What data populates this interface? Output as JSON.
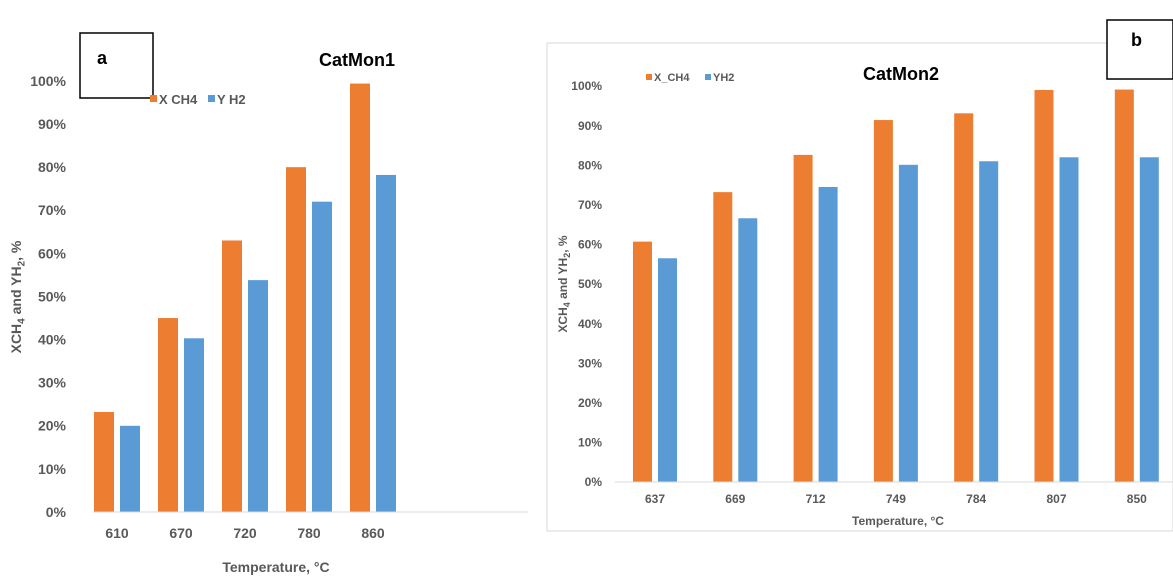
{
  "colors": {
    "x_ch4": "#ED7D31",
    "y_h2": "#5B9BD5",
    "axis": "#D9D9D9",
    "text": "#595959"
  },
  "chart_data": [
    {
      "type": "bar",
      "panel_label": "a",
      "title": "CatMon1",
      "xlabel": "Temperature, °C",
      "ylabel_parts": [
        "XCH",
        "4",
        " and YH",
        "2",
        ", %"
      ],
      "categories": [
        "610",
        "670",
        "720",
        "780",
        "860"
      ],
      "ylim": [
        0,
        100
      ],
      "yticks": [
        "0%",
        "10%",
        "20%",
        "30%",
        "40%",
        "50%",
        "60%",
        "70%",
        "80%",
        "90%",
        "100%"
      ],
      "grid": false,
      "legend_position": "top-left",
      "series": [
        {
          "name": "X CH4",
          "values": [
            23.2,
            45,
            63,
            80,
            99.4
          ]
        },
        {
          "name": "Y H2",
          "values": [
            20,
            40.3,
            53.8,
            72,
            78.2
          ]
        }
      ]
    },
    {
      "type": "bar",
      "panel_label": "b",
      "title": "CatMon2",
      "xlabel": "Temperature, °C",
      "ylabel_parts": [
        "XCH",
        "4",
        " and YH",
        "2",
        ", %"
      ],
      "categories": [
        "637",
        "669",
        "712",
        "749",
        "784",
        "807",
        "850"
      ],
      "ylim": [
        0,
        100
      ],
      "yticks": [
        "0%",
        "10%",
        "20%",
        "30%",
        "40%",
        "50%",
        "60%",
        "70%",
        "80%",
        "90%",
        "100%"
      ],
      "grid": false,
      "legend_position": "top-left",
      "series": [
        {
          "name": "X_CH4",
          "values": [
            60.7,
            73.2,
            82.6,
            91.4,
            93.1,
            99,
            99.1
          ]
        },
        {
          "name": "YH2",
          "values": [
            56.5,
            66.6,
            74.5,
            80.1,
            81,
            82,
            82
          ]
        }
      ]
    }
  ]
}
